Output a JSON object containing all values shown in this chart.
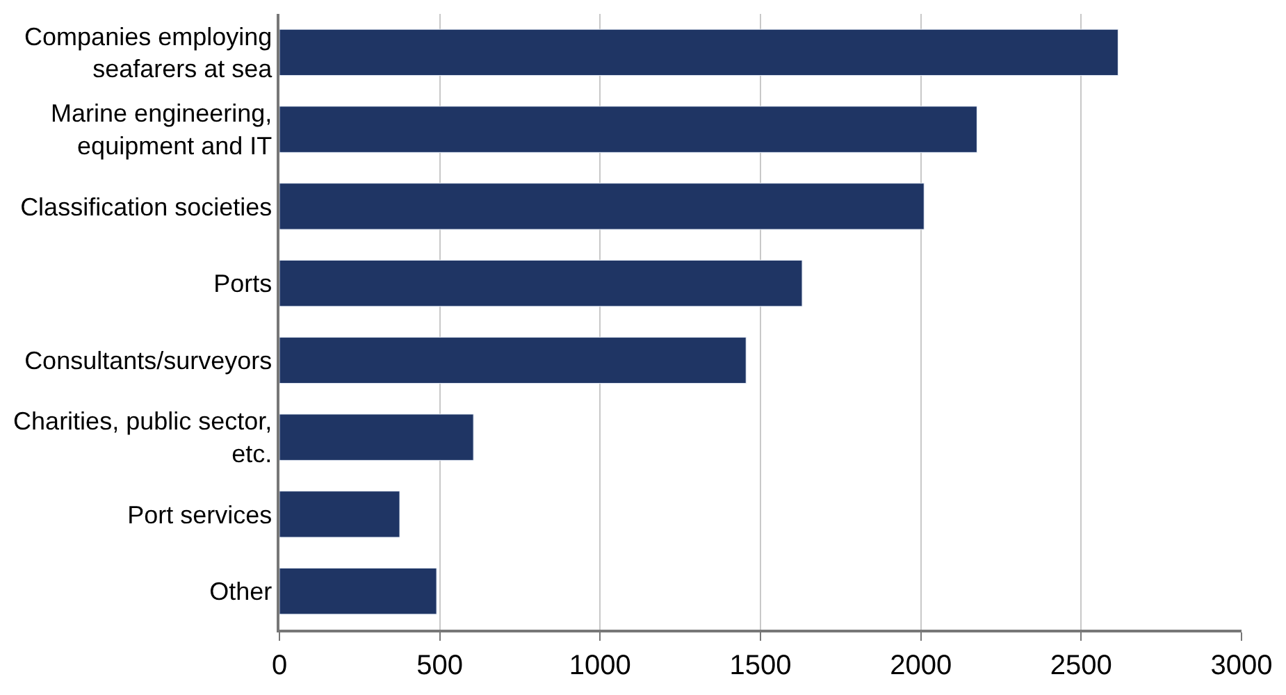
{
  "chart_data": {
    "type": "bar",
    "orientation": "horizontal",
    "categories": [
      "Companies employing seafarers at sea",
      "Marine engineering, equipment and IT",
      "Classification societies",
      "Ports",
      "Consultants/surveyors",
      "Charities, public sector, etc.",
      "Port services",
      "Other"
    ],
    "values": [
      2615,
      2175,
      2010,
      1630,
      1455,
      605,
      375,
      490
    ],
    "color": "#1f3564",
    "xlim": [
      0,
      3000
    ],
    "xticks": [
      0,
      500,
      1000,
      1500,
      2000,
      2500,
      3000
    ],
    "grid": "x"
  }
}
